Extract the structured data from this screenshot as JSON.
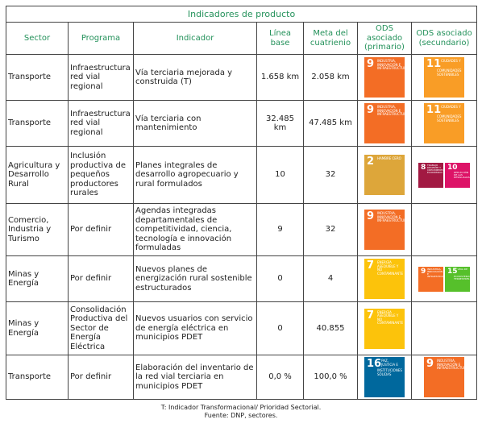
{
  "title": "Indicadores de producto",
  "headers": [
    "Sector",
    "Programa",
    "Indicador",
    "Línea base",
    "Meta del cuatrienio",
    "ODS asociado (primario)",
    "ODS asociado (secundario)"
  ],
  "rows": [
    {
      "sector": "Transporte",
      "programa": "Infraestructura red vial regional",
      "indicador": "Vía terciaria mejorada y construida (T)",
      "base": "1.658 km",
      "meta": "2.058 km",
      "primario": [
        {
          "number": "9",
          "label": "INDUSTRIA, INNOVACIÓN E INFRAESTRUCTURA",
          "color": "#f36d25"
        }
      ],
      "secundario": [
        {
          "number": "11",
          "label": "CIUDADES Y COMUNIDADES SOSTENIBLES",
          "color": "#f99d26"
        }
      ]
    },
    {
      "sector": "Transporte",
      "programa": "Infraestructura red vial regional",
      "indicador": "Vía terciaria con mantenimiento",
      "base": "32.485 km",
      "meta": "47.485 km",
      "primario": [
        {
          "number": "9",
          "label": "INDUSTRIA, INNOVACIÓN E INFRAESTRUCTURA",
          "color": "#f36d25"
        }
      ],
      "secundario": [
        {
          "number": "11",
          "label": "CIUDADES Y COMUNIDADES SOSTENIBLES",
          "color": "#f99d26"
        }
      ]
    },
    {
      "sector": "Agricultura y Desarrollo Rural",
      "programa": "Inclusión productiva de pequeños productores rurales",
      "indicador": "Planes integrales de desarrollo agropecuario y rural formulados",
      "base": "10",
      "meta": "32",
      "primario": [
        {
          "number": "2",
          "label": "HAMBRE CERO",
          "color": "#dda63a"
        }
      ],
      "secundario": [
        {
          "number": "8",
          "label": "TRABAJO DECENTE Y CRECIMIENTO ECONÓMICO",
          "color": "#a21942"
        },
        {
          "number": "10",
          "label": "REDUCCIÓN DE LAS DESIGUALDADES",
          "color": "#dd1367"
        }
      ]
    },
    {
      "sector": "Comercio, Industria y Turismo",
      "programa": "Por definir",
      "indicador": "Agendas integradas departamentales de competitividad, ciencia, tecnología e innovación formuladas",
      "base": "9",
      "meta": "32",
      "primario": [
        {
          "number": "9",
          "label": "INDUSTRIA, INNOVACIÓN E INFRAESTRUCTURA",
          "color": "#f36d25"
        }
      ],
      "secundario": []
    },
    {
      "sector": "Minas y Energía",
      "programa": "Por definir",
      "indicador": "Nuevos planes de energización rural sostenible estructurados",
      "base": "0",
      "meta": "4",
      "primario": [
        {
          "number": "7",
          "label": "ENERGÍA ASEQUIBLE Y NO CONTAMINANTE",
          "color": "#fcc30b"
        }
      ],
      "secundario": [
        {
          "number": "9",
          "label": "INDUSTRIA, INNOVACIÓN E INFRAESTRUCTURA",
          "color": "#f36d25"
        },
        {
          "number": "15",
          "label": "VIDA DE ECOSISTEMAS TERRESTRES",
          "color": "#56c02b"
        }
      ]
    },
    {
      "sector": "Minas y Energía",
      "programa": "Consolidación Productiva del Sector de Energía Eléctrica",
      "indicador": "Nuevos usuarios con servicio de energía eléctrica en municipios PDET",
      "base": "0",
      "meta": "40.855",
      "primario": [
        {
          "number": "7",
          "label": "ENERGÍA ASEQUIBLE Y NO CONTAMINANTE",
          "color": "#fcc30b"
        }
      ],
      "secundario": []
    },
    {
      "sector": "Transporte",
      "programa": "Por definir",
      "indicador": "Elaboración del inventario de la red vial terciaria en municipios PDET",
      "base": "0,0 %",
      "meta": "100,0 %",
      "primario": [
        {
          "number": "16",
          "label": "PAZ, JUSTICIA E INSTITUCIONES SÓLIDAS",
          "color": "#00689d"
        }
      ],
      "secundario": [
        {
          "number": "9",
          "label": "INDUSTRIA, INNOVACIÓN E INFRAESTRUCTURA",
          "color": "#f36d25"
        }
      ]
    }
  ],
  "notes": [
    "T: Indicador Transformacional/ Prioridad Sectorial.",
    "Fuente: DNP, sectores."
  ]
}
